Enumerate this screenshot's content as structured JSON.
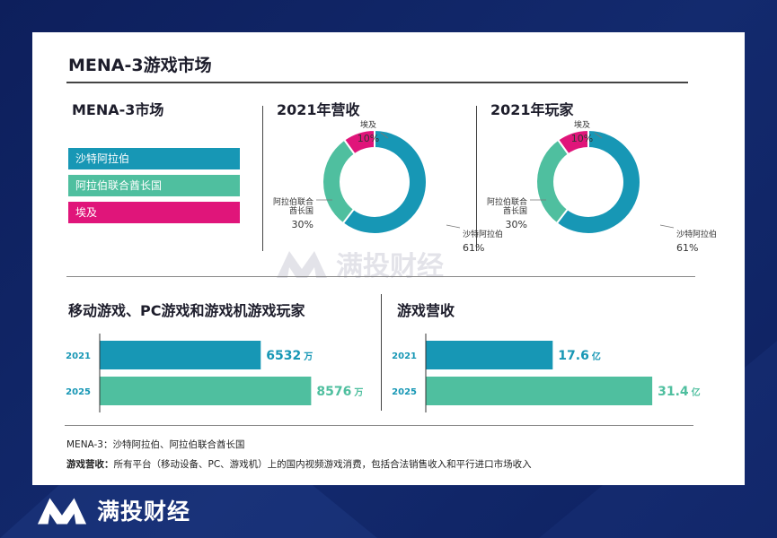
{
  "brand": {
    "name": "满投财经"
  },
  "watermark": {
    "text": "满投财经"
  },
  "main_title": "MENA-3游戏市场",
  "market_section": {
    "title": "MENA-3市场",
    "legend": [
      {
        "label": "沙特阿拉伯",
        "color": "#1797b5"
      },
      {
        "label": "阿拉伯联合酋长国",
        "color": "#4fbf9f"
      },
      {
        "label": "埃及",
        "color": "#e0157a"
      }
    ]
  },
  "bar_sections": {
    "players_title": "移动游戏、PC游戏和游戏机游戏玩家",
    "revenue_title": "游戏营收"
  },
  "notes": {
    "line1": "MENA-3：沙特阿拉伯、阿拉伯联合酋长国",
    "line2_label": "游戏营收：",
    "line2_text": "所有平台（移动设备、PC、游戏机）上的国内视频游戏消费，包括合法销售收入和平行进口市场收入"
  },
  "chart_data": [
    {
      "type": "pie",
      "title": "2021年营收",
      "donut": true,
      "slices": [
        {
          "label": "沙特阿拉伯",
          "value": 61,
          "display": "61%",
          "color": "#1797b5"
        },
        {
          "label": "阿拉伯联合酋长国",
          "value": 30,
          "display": "30%",
          "color": "#4fbf9f"
        },
        {
          "label": "埃及",
          "value": 10,
          "display": "10%",
          "color": "#e0157a"
        }
      ]
    },
    {
      "type": "pie",
      "title": "2021年玩家",
      "donut": true,
      "slices": [
        {
          "label": "沙特阿拉伯",
          "value": 61,
          "display": "61%",
          "color": "#1797b5"
        },
        {
          "label": "阿拉伯联合酋长国",
          "value": 30,
          "display": "30%",
          "color": "#4fbf9f"
        },
        {
          "label": "埃及",
          "value": 10,
          "display": "10%",
          "color": "#e0157a"
        }
      ]
    },
    {
      "type": "bar",
      "orientation": "horizontal",
      "title": "移动游戏、PC游戏和游戏机游戏玩家",
      "categories": [
        "2021",
        "2025"
      ],
      "values": [
        6532,
        8576
      ],
      "unit": "万",
      "colors": [
        "#1797b5",
        "#4fbf9f"
      ],
      "xlim": [
        0,
        9400
      ]
    },
    {
      "type": "bar",
      "orientation": "horizontal",
      "title": "游戏营收",
      "categories": [
        "2021",
        "2025"
      ],
      "values": [
        17.6,
        31.4
      ],
      "value_labels": [
        "17.6",
        "31.4"
      ],
      "unit": "亿",
      "colors": [
        "#1797b5",
        "#4fbf9f"
      ],
      "xlim": [
        0,
        34.5
      ]
    }
  ]
}
